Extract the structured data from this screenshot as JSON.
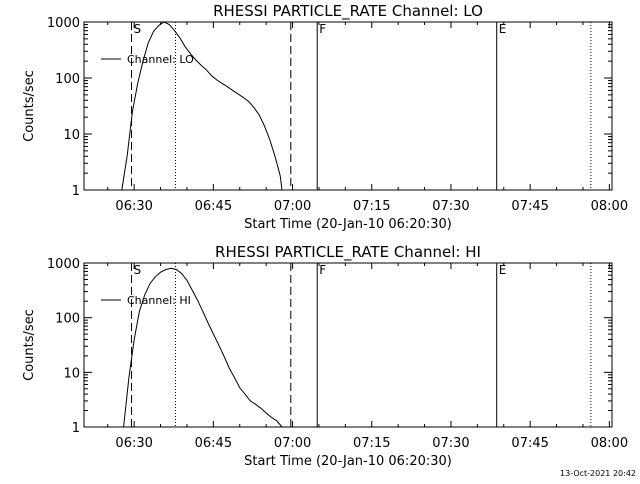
{
  "timestamp": "13-Oct-2021 20:42",
  "chart_data": [
    {
      "type": "line",
      "title": "RHESSI PARTICLE_RATE Channel: LO",
      "xlabel": "Start Time (20-Jan-10 06:20:30)",
      "ylabel": "Counts/sec",
      "y_scale": "log",
      "xlim": [
        "06:20:30",
        "08:00:30"
      ],
      "ylim": [
        1,
        1000
      ],
      "x_ticks": [
        "06:30",
        "06:45",
        "07:00",
        "07:15",
        "07:30",
        "07:45",
        "08:00"
      ],
      "y_ticks": [
        "1",
        "10",
        "100",
        "1000"
      ],
      "legend": {
        "position": "top-left",
        "entries": [
          "Channel: LO"
        ]
      },
      "series": [
        {
          "name": "Channel: LO",
          "x": [
            "06:27:40",
            "06:28:40",
            "06:29:40",
            "06:30:40",
            "06:31:40",
            "06:32:40",
            "06:33:40",
            "06:34:40",
            "06:35:40",
            "06:36:40",
            "06:37:40",
            "06:38:40",
            "06:39:40",
            "06:40:40",
            "06:41:40",
            "06:42:40",
            "06:43:40",
            "06:44:40",
            "06:45:40",
            "06:46:40",
            "06:47:40",
            "06:48:40",
            "06:49:40",
            "06:50:40",
            "06:51:40",
            "06:52:40",
            "06:53:40",
            "06:54:40",
            "06:55:40",
            "06:56:40",
            "06:57:40",
            "06:58:00"
          ],
          "y": [
            1,
            4,
            25,
            80,
            200,
            420,
            680,
            870,
            1000,
            900,
            700,
            520,
            360,
            270,
            210,
            170,
            140,
            110,
            92,
            80,
            70,
            60,
            52,
            45,
            38,
            30,
            22,
            14,
            8,
            4,
            1.8,
            1
          ]
        }
      ],
      "markers": [
        {
          "label": "S",
          "time": "06:29:30",
          "style": "dashed"
        },
        {
          "label": "F",
          "time": "07:04:40",
          "style": "solid"
        },
        {
          "label": "E",
          "time": "07:38:40",
          "style": "solid"
        }
      ],
      "extra_lines": [
        {
          "time": "06:37:50",
          "style": "dotted"
        },
        {
          "time": "06:59:40",
          "style": "dashed"
        },
        {
          "time": "07:56:30",
          "style": "dotted"
        }
      ]
    },
    {
      "type": "line",
      "title": "RHESSI PARTICLE_RATE Channel: HI",
      "xlabel": "Start Time (20-Jan-10 06:20:30)",
      "ylabel": "Counts/sec",
      "y_scale": "log",
      "xlim": [
        "06:20:30",
        "08:00:30"
      ],
      "ylim": [
        1,
        1000
      ],
      "x_ticks": [
        "06:30",
        "06:45",
        "07:00",
        "07:15",
        "07:30",
        "07:45",
        "08:00"
      ],
      "y_ticks": [
        "1",
        "10",
        "100",
        "1000"
      ],
      "legend": {
        "position": "top-left",
        "entries": [
          "Channel: HI"
        ]
      },
      "series": [
        {
          "name": "Channel: HI",
          "x": [
            "06:28:00",
            "06:29:00",
            "06:30:00",
            "06:31:00",
            "06:32:00",
            "06:33:00",
            "06:34:00",
            "06:35:00",
            "06:36:00",
            "06:37:00",
            "06:38:00",
            "06:39:00",
            "06:40:00",
            "06:41:00",
            "06:42:00",
            "06:43:00",
            "06:44:00",
            "06:45:00",
            "06:46:00",
            "06:47:00",
            "06:48:00",
            "06:49:00",
            "06:50:00",
            "06:51:00",
            "06:52:00",
            "06:53:00",
            "06:54:00",
            "06:55:00",
            "06:56:00",
            "06:57:00",
            "06:58:00"
          ],
          "y": [
            1,
            8,
            40,
            130,
            260,
            420,
            560,
            680,
            760,
            800,
            760,
            640,
            480,
            320,
            210,
            130,
            80,
            50,
            32,
            20,
            12,
            8,
            5.2,
            4,
            3,
            2.6,
            2.2,
            1.8,
            1.5,
            1.3,
            1
          ]
        }
      ],
      "markers": [
        {
          "label": "S",
          "time": "06:29:30",
          "style": "dashed"
        },
        {
          "label": "F",
          "time": "07:04:40",
          "style": "solid"
        },
        {
          "label": "E",
          "time": "07:38:40",
          "style": "solid"
        }
      ],
      "extra_lines": [
        {
          "time": "06:37:50",
          "style": "dotted"
        },
        {
          "time": "06:59:40",
          "style": "dashed"
        },
        {
          "time": "07:56:30",
          "style": "dotted"
        }
      ]
    }
  ]
}
